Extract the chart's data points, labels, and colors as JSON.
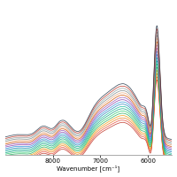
{
  "title": "",
  "xlabel": "Wavenumber [cm⁻¹]",
  "ylabel": "",
  "xlim": [
    9000,
    5500
  ],
  "ylim": [
    -0.02,
    0.85
  ],
  "x_ticks": [
    8000,
    7000,
    6000
  ],
  "background_color": "#ffffff",
  "n_spectra": 18,
  "line_width": 0.55,
  "colors": [
    "#c0392b",
    "#e74c3c",
    "#e67e22",
    "#f39c12",
    "#27ae60",
    "#2ecc71",
    "#16a085",
    "#1abc9c",
    "#2980b9",
    "#3498db",
    "#8e44ad",
    "#9b59b6",
    "#d35400",
    "#e8a87c",
    "#7f8c8d",
    "#95a5a6",
    "#c0392b",
    "#2c3e50"
  ]
}
